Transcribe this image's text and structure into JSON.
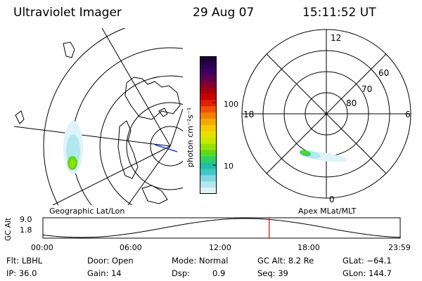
{
  "header": {
    "title": "Ultraviolet Imager",
    "date": "29 Aug 07",
    "time": "15:11:52 UT"
  },
  "colorbar": {
    "label": "photon cm⁻²s⁻¹",
    "ticks": [
      "100",
      "10"
    ],
    "colors": [
      "#1a0033",
      "#2a0050",
      "#3d0060",
      "#5b0050",
      "#800030",
      "#a00010",
      "#c80000",
      "#e02000",
      "#f05000",
      "#f58000",
      "#f8a800",
      "#f8c800",
      "#e8e000",
      "#c8e800",
      "#98e000",
      "#60d820",
      "#30d060",
      "#20c0a0",
      "#40c8c8",
      "#80d8e0",
      "#b0e8f0",
      "#dff3f8"
    ]
  },
  "left_panel": {
    "caption": "Geographic Lat/Lon"
  },
  "right_panel": {
    "caption": "Apex MLat/MLT",
    "mlt_labels": {
      "top": "12",
      "left": "18",
      "right": "6",
      "bottom": "0"
    },
    "lat_labels": [
      "60",
      "70",
      "80"
    ]
  },
  "gc_plot": {
    "label": "GC Alt",
    "ytick_top": "9.0",
    "ytick_bottom": "1.8",
    "xticks": [
      "00:00",
      "06:00",
      "12:00",
      "18:00",
      "23:59"
    ],
    "current_marker_hour": 15.2,
    "marker_color": "#e00000"
  },
  "info": {
    "filter": "Flt: LBHL",
    "door": "Door: Open",
    "mode": "Mode: Normal",
    "gc_alt": "GC Alt: 8.2 Re",
    "glat": "GLat: −64.1",
    "ip": "IP: 36.0",
    "gain": "Gain: 14",
    "dsp_label": "Dsp:",
    "dsp_value": "0.9",
    "seq": "Seq: 39",
    "glon": "GLon: 144.7"
  }
}
